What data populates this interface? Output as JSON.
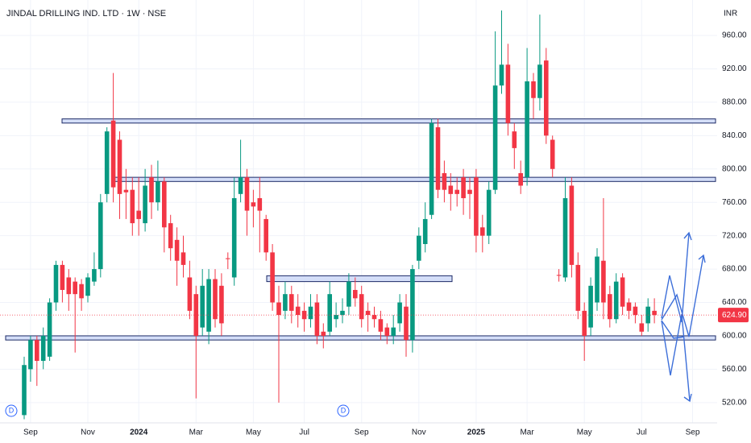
{
  "chart_data": {
    "type": "candlestick",
    "title": "JINDAL DRILLING IND. LTD · 1W · NSE",
    "currency": "INR",
    "categories": [
      null,
      "Sep",
      null,
      null,
      null,
      null,
      null,
      null,
      null,
      null,
      "Nov",
      null,
      null,
      null,
      null,
      null,
      null,
      null,
      "2024",
      null,
      null,
      null,
      null,
      null,
      null,
      null,
      null,
      "Mar",
      null,
      null,
      null,
      null,
      null,
      null,
      null,
      null,
      "May",
      null,
      null,
      null,
      null,
      null,
      null,
      null,
      "Jul",
      null,
      null,
      null,
      null,
      null,
      null,
      null,
      null,
      "Sep",
      null,
      null,
      null,
      null,
      null,
      null,
      null,
      null,
      "Nov",
      null,
      null,
      null,
      null,
      null,
      null,
      null,
      null,
      "2025",
      null,
      null,
      null,
      null,
      null,
      null,
      null,
      "Mar",
      null,
      null,
      null,
      null,
      null,
      null,
      null,
      null,
      "May",
      null,
      null,
      null,
      null,
      null,
      null,
      null,
      null,
      "Jul",
      null,
      null,
      null,
      null,
      null,
      null,
      null,
      "Sep"
    ],
    "open": [
      505,
      560,
      595,
      570,
      575,
      640,
      685,
      670,
      665,
      662,
      648,
      665,
      680,
      770,
      858,
      835,
      775,
      775,
      750,
      735,
      790,
      760,
      785,
      735,
      715,
      700,
      670,
      650,
      610,
      605,
      668,
      660,
      693,
      670,
      770,
      790,
      760,
      765,
      740,
      700,
      640,
      630,
      650,
      635,
      630,
      620,
      640,
      605,
      605,
      620,
      625,
      635,
      655,
      650,
      630,
      625,
      620,
      610,
      600,
      615,
      635,
      595,
      690,
      710,
      745,
      850,
      795,
      780,
      775,
      790,
      775,
      790,
      730,
      720,
      775,
      900,
      925,
      845,
      795,
      790,
      905,
      885,
      930,
      835,
      673,
      670,
      780,
      685,
      630,
      610,
      640,
      690,
      650,
      620,
      670,
      640,
      635,
      615,
      615,
      630,
      null,
      null,
      null,
      null,
      null,
      null
    ],
    "high": [
      575,
      600,
      600,
      610,
      645,
      690,
      690,
      680,
      670,
      668,
      675,
      700,
      770,
      850,
      915,
      845,
      800,
      790,
      790,
      800,
      805,
      810,
      790,
      745,
      730,
      720,
      690,
      660,
      680,
      680,
      680,
      675,
      700,
      790,
      835,
      800,
      775,
      790,
      745,
      710,
      660,
      665,
      660,
      650,
      640,
      650,
      650,
      615,
      665,
      640,
      645,
      675,
      670,
      660,
      640,
      635,
      630,
      615,
      625,
      650,
      650,
      685,
      730,
      760,
      860,
      860,
      810,
      795,
      790,
      800,
      790,
      800,
      745,
      785,
      965,
      990,
      950,
      855,
      810,
      945,
      915,
      985,
      945,
      840,
      680,
      790,
      790,
      700,
      640,
      670,
      705,
      765,
      660,
      675,
      675,
      645,
      640,
      625,
      645,
      645,
      null,
      null,
      null,
      null,
      null,
      null
    ],
    "low": [
      500,
      545,
      540,
      560,
      570,
      630,
      640,
      630,
      580,
      630,
      640,
      660,
      670,
      760,
      760,
      740,
      740,
      720,
      720,
      725,
      740,
      750,
      700,
      690,
      660,
      670,
      620,
      525,
      600,
      590,
      610,
      600,
      680,
      660,
      760,
      720,
      730,
      700,
      690,
      630,
      520,
      620,
      615,
      610,
      605,
      610,
      590,
      585,
      600,
      610,
      615,
      625,
      635,
      610,
      605,
      610,
      595,
      590,
      590,
      605,
      575,
      580,
      680,
      700,
      740,
      765,
      760,
      750,
      755,
      745,
      740,
      700,
      700,
      710,
      770,
      890,
      840,
      800,
      770,
      780,
      860,
      870,
      830,
      790,
      665,
      665,
      670,
      620,
      570,
      600,
      630,
      620,
      610,
      615,
      625,
      620,
      615,
      600,
      605,
      615,
      null,
      null,
      null,
      null,
      null,
      null
    ],
    "close": [
      565,
      595,
      570,
      600,
      640,
      685,
      655,
      650,
      650,
      645,
      670,
      680,
      760,
      845,
      778,
      770,
      772,
      735,
      740,
      780,
      760,
      785,
      730,
      705,
      690,
      685,
      630,
      600,
      660,
      668,
      620,
      615,
      692,
      765,
      790,
      750,
      755,
      750,
      700,
      640,
      625,
      650,
      630,
      625,
      620,
      635,
      600,
      600,
      650,
      625,
      630,
      665,
      645,
      620,
      625,
      620,
      605,
      600,
      610,
      640,
      595,
      680,
      720,
      740,
      855,
      775,
      775,
      770,
      770,
      765,
      770,
      720,
      720,
      775,
      900,
      925,
      855,
      825,
      780,
      905,
      885,
      925,
      840,
      800,
      672,
      765,
      685,
      630,
      600,
      660,
      695,
      640,
      620,
      665,
      635,
      630,
      625,
      605,
      635,
      624.9,
      null,
      null,
      null,
      null,
      null,
      null
    ],
    "up_color": "#089981",
    "down_color": "#f23645",
    "ylim": [
      495.7,
      1002.5
    ],
    "yticks": [
      {
        "value": 520,
        "label": "520.00"
      },
      {
        "value": 560,
        "label": "560.00"
      },
      {
        "value": 600,
        "label": "600.00"
      },
      {
        "value": 640,
        "label": "640.00"
      },
      {
        "value": 680,
        "label": "680.00"
      },
      {
        "value": 720,
        "label": "720.00"
      },
      {
        "value": 760,
        "label": "760.00"
      },
      {
        "value": 800,
        "label": "800.00"
      },
      {
        "value": 840,
        "label": "840.00"
      },
      {
        "value": 880,
        "label": "880.00"
      },
      {
        "value": 920,
        "label": "920.00"
      },
      {
        "value": 960,
        "label": "960.00"
      }
    ],
    "last_price": {
      "value": 624.9,
      "label": "624.90"
    },
    "zones": [
      {
        "range": [
          855,
          860
        ]
      },
      {
        "range": [
          785,
          790
        ]
      },
      {
        "range": [
          665,
          672
        ]
      },
      {
        "range": [
          595,
          600
        ]
      }
    ],
    "markers": [
      "D",
      "D"
    ],
    "grid": true
  }
}
